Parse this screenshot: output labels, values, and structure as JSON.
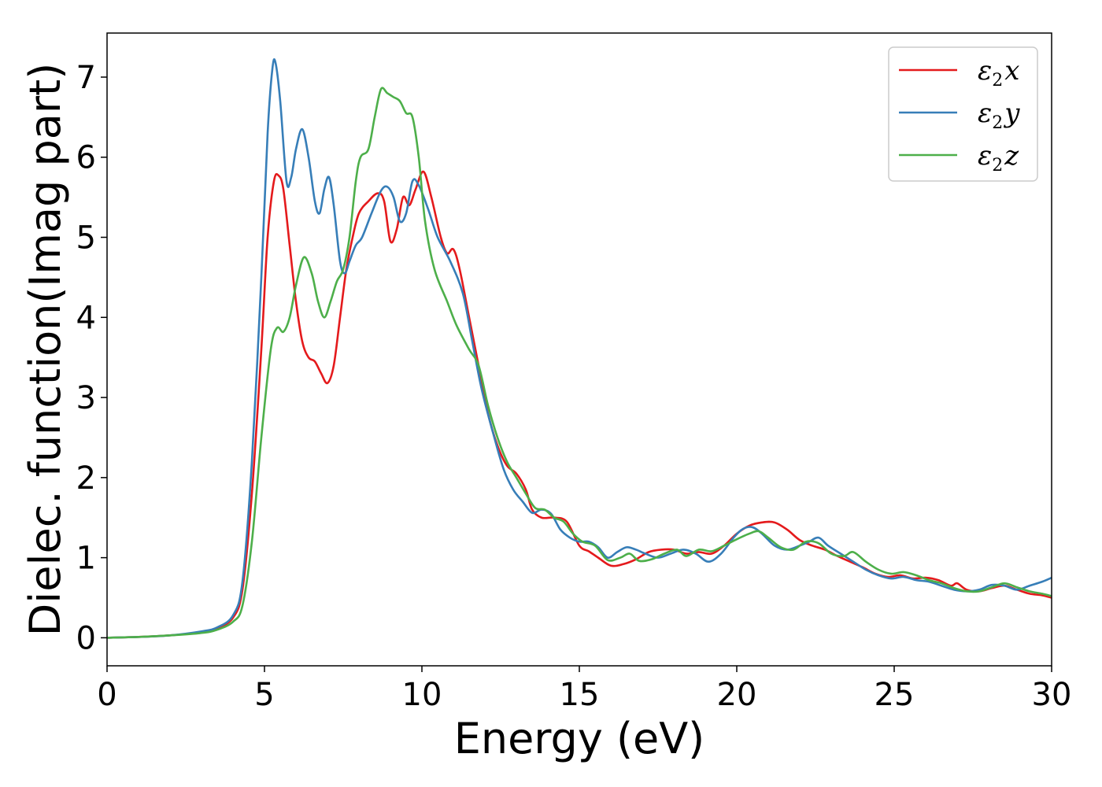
{
  "chart_data": {
    "type": "line",
    "title": "",
    "xlabel": "Energy (eV)",
    "ylabel": "Dielec. function(Imag part)",
    "xlim": [
      0,
      30
    ],
    "ylim": [
      -0.35,
      7.55
    ],
    "xticks": [
      0,
      5,
      10,
      15,
      20,
      25,
      30
    ],
    "yticks": [
      0,
      1,
      2,
      3,
      4,
      5,
      6,
      7
    ],
    "grid": false,
    "legend_position": "top-right",
    "series": [
      {
        "name": "ε₂x",
        "legend_base": "ε",
        "legend_sub": "2",
        "legend_var": "x",
        "color": "#e41a1c",
        "points": [
          [
            0,
            0
          ],
          [
            1,
            0.01
          ],
          [
            2,
            0.03
          ],
          [
            3,
            0.07
          ],
          [
            3.5,
            0.12
          ],
          [
            4,
            0.25
          ],
          [
            4.3,
            0.6
          ],
          [
            4.6,
            1.8
          ],
          [
            4.9,
            3.6
          ],
          [
            5.1,
            5.0
          ],
          [
            5.3,
            5.7
          ],
          [
            5.45,
            5.77
          ],
          [
            5.6,
            5.6
          ],
          [
            5.8,
            4.9
          ],
          [
            6.0,
            4.2
          ],
          [
            6.2,
            3.7
          ],
          [
            6.4,
            3.5
          ],
          [
            6.6,
            3.45
          ],
          [
            6.8,
            3.3
          ],
          [
            7.0,
            3.18
          ],
          [
            7.2,
            3.4
          ],
          [
            7.4,
            4.0
          ],
          [
            7.6,
            4.6
          ],
          [
            7.8,
            5.0
          ],
          [
            8.0,
            5.3
          ],
          [
            8.3,
            5.45
          ],
          [
            8.6,
            5.55
          ],
          [
            8.8,
            5.45
          ],
          [
            9.0,
            4.95
          ],
          [
            9.2,
            5.1
          ],
          [
            9.4,
            5.5
          ],
          [
            9.6,
            5.4
          ],
          [
            9.8,
            5.6
          ],
          [
            10.05,
            5.82
          ],
          [
            10.3,
            5.5
          ],
          [
            10.6,
            5.0
          ],
          [
            10.8,
            4.8
          ],
          [
            11.0,
            4.85
          ],
          [
            11.2,
            4.6
          ],
          [
            11.5,
            4.0
          ],
          [
            11.8,
            3.4
          ],
          [
            12.1,
            2.8
          ],
          [
            12.4,
            2.4
          ],
          [
            12.7,
            2.15
          ],
          [
            13.0,
            2.05
          ],
          [
            13.3,
            1.85
          ],
          [
            13.5,
            1.6
          ],
          [
            13.8,
            1.5
          ],
          [
            14.2,
            1.5
          ],
          [
            14.6,
            1.45
          ],
          [
            15.0,
            1.15
          ],
          [
            15.3,
            1.08
          ],
          [
            15.6,
            1.0
          ],
          [
            16.0,
            0.9
          ],
          [
            16.4,
            0.92
          ],
          [
            16.8,
            0.98
          ],
          [
            17.2,
            1.07
          ],
          [
            17.6,
            1.1
          ],
          [
            18.0,
            1.1
          ],
          [
            18.4,
            1.05
          ],
          [
            18.8,
            1.07
          ],
          [
            19.2,
            1.05
          ],
          [
            19.6,
            1.15
          ],
          [
            20.0,
            1.3
          ],
          [
            20.4,
            1.4
          ],
          [
            20.8,
            1.44
          ],
          [
            21.2,
            1.44
          ],
          [
            21.6,
            1.35
          ],
          [
            22.0,
            1.22
          ],
          [
            22.4,
            1.15
          ],
          [
            22.8,
            1.1
          ],
          [
            23.2,
            1.02
          ],
          [
            23.6,
            0.95
          ],
          [
            24.0,
            0.88
          ],
          [
            24.4,
            0.8
          ],
          [
            24.8,
            0.76
          ],
          [
            25.2,
            0.78
          ],
          [
            25.6,
            0.74
          ],
          [
            26.0,
            0.75
          ],
          [
            26.4,
            0.72
          ],
          [
            26.8,
            0.65
          ],
          [
            27.0,
            0.68
          ],
          [
            27.3,
            0.6
          ],
          [
            27.7,
            0.58
          ],
          [
            28.1,
            0.62
          ],
          [
            28.5,
            0.65
          ],
          [
            28.9,
            0.6
          ],
          [
            29.3,
            0.55
          ],
          [
            29.7,
            0.53
          ],
          [
            30.0,
            0.5
          ]
        ]
      },
      {
        "name": "ε₂y",
        "legend_base": "ε",
        "legend_sub": "2",
        "legend_var": "y",
        "color": "#377eb8",
        "points": [
          [
            0,
            0
          ],
          [
            1,
            0.01
          ],
          [
            2,
            0.03
          ],
          [
            3,
            0.08
          ],
          [
            3.5,
            0.13
          ],
          [
            4,
            0.28
          ],
          [
            4.3,
            0.7
          ],
          [
            4.6,
            2.2
          ],
          [
            4.9,
            4.5
          ],
          [
            5.1,
            6.3
          ],
          [
            5.25,
            7.1
          ],
          [
            5.35,
            7.18
          ],
          [
            5.5,
            6.7
          ],
          [
            5.7,
            5.7
          ],
          [
            5.85,
            5.75
          ],
          [
            6.0,
            6.1
          ],
          [
            6.2,
            6.35
          ],
          [
            6.4,
            6.0
          ],
          [
            6.6,
            5.45
          ],
          [
            6.75,
            5.3
          ],
          [
            6.9,
            5.6
          ],
          [
            7.05,
            5.75
          ],
          [
            7.2,
            5.4
          ],
          [
            7.4,
            4.7
          ],
          [
            7.55,
            4.55
          ],
          [
            7.7,
            4.7
          ],
          [
            7.9,
            4.9
          ],
          [
            8.1,
            5.0
          ],
          [
            8.4,
            5.3
          ],
          [
            8.7,
            5.58
          ],
          [
            8.9,
            5.63
          ],
          [
            9.1,
            5.5
          ],
          [
            9.3,
            5.2
          ],
          [
            9.5,
            5.3
          ],
          [
            9.7,
            5.7
          ],
          [
            9.9,
            5.65
          ],
          [
            10.2,
            5.35
          ],
          [
            10.5,
            5.0
          ],
          [
            10.9,
            4.7
          ],
          [
            11.3,
            4.3
          ],
          [
            11.6,
            3.7
          ],
          [
            11.9,
            3.1
          ],
          [
            12.3,
            2.5
          ],
          [
            12.6,
            2.1
          ],
          [
            12.9,
            1.85
          ],
          [
            13.2,
            1.7
          ],
          [
            13.5,
            1.56
          ],
          [
            13.8,
            1.6
          ],
          [
            14.1,
            1.55
          ],
          [
            14.4,
            1.35
          ],
          [
            14.7,
            1.25
          ],
          [
            15.0,
            1.2
          ],
          [
            15.3,
            1.2
          ],
          [
            15.6,
            1.13
          ],
          [
            15.9,
            1.0
          ],
          [
            16.2,
            1.07
          ],
          [
            16.5,
            1.13
          ],
          [
            16.8,
            1.1
          ],
          [
            17.1,
            1.05
          ],
          [
            17.5,
            1.0
          ],
          [
            17.9,
            1.05
          ],
          [
            18.3,
            1.1
          ],
          [
            18.7,
            1.05
          ],
          [
            19.1,
            0.95
          ],
          [
            19.5,
            1.05
          ],
          [
            19.9,
            1.25
          ],
          [
            20.2,
            1.36
          ],
          [
            20.5,
            1.38
          ],
          [
            20.8,
            1.3
          ],
          [
            21.2,
            1.15
          ],
          [
            21.6,
            1.1
          ],
          [
            22.0,
            1.15
          ],
          [
            22.3,
            1.2
          ],
          [
            22.6,
            1.25
          ],
          [
            22.9,
            1.15
          ],
          [
            23.3,
            1.05
          ],
          [
            23.7,
            0.95
          ],
          [
            24.1,
            0.85
          ],
          [
            24.5,
            0.78
          ],
          [
            24.9,
            0.74
          ],
          [
            25.3,
            0.76
          ],
          [
            25.7,
            0.72
          ],
          [
            26.1,
            0.7
          ],
          [
            26.5,
            0.65
          ],
          [
            26.9,
            0.6
          ],
          [
            27.3,
            0.58
          ],
          [
            27.7,
            0.6
          ],
          [
            28.1,
            0.66
          ],
          [
            28.5,
            0.65
          ],
          [
            28.9,
            0.6
          ],
          [
            29.3,
            0.65
          ],
          [
            29.7,
            0.7
          ],
          [
            30.0,
            0.75
          ]
        ]
      },
      {
        "name": "ε₂z",
        "legend_base": "ε",
        "legend_sub": "2",
        "legend_var": "z",
        "color": "#4daf4a",
        "points": [
          [
            0,
            0
          ],
          [
            1,
            0.01
          ],
          [
            2,
            0.03
          ],
          [
            3,
            0.06
          ],
          [
            3.5,
            0.1
          ],
          [
            4,
            0.2
          ],
          [
            4.3,
            0.4
          ],
          [
            4.6,
            1.2
          ],
          [
            4.9,
            2.5
          ],
          [
            5.2,
            3.6
          ],
          [
            5.4,
            3.87
          ],
          [
            5.6,
            3.82
          ],
          [
            5.8,
            4.0
          ],
          [
            6.0,
            4.4
          ],
          [
            6.25,
            4.75
          ],
          [
            6.5,
            4.55
          ],
          [
            6.7,
            4.2
          ],
          [
            6.9,
            4.0
          ],
          [
            7.1,
            4.2
          ],
          [
            7.3,
            4.45
          ],
          [
            7.5,
            4.6
          ],
          [
            7.7,
            5.0
          ],
          [
            7.9,
            5.7
          ],
          [
            8.05,
            6.0
          ],
          [
            8.3,
            6.1
          ],
          [
            8.5,
            6.5
          ],
          [
            8.7,
            6.85
          ],
          [
            8.9,
            6.8
          ],
          [
            9.1,
            6.75
          ],
          [
            9.3,
            6.7
          ],
          [
            9.5,
            6.55
          ],
          [
            9.7,
            6.5
          ],
          [
            9.9,
            6.0
          ],
          [
            10.1,
            5.2
          ],
          [
            10.4,
            4.6
          ],
          [
            10.8,
            4.2
          ],
          [
            11.1,
            3.9
          ],
          [
            11.5,
            3.6
          ],
          [
            11.8,
            3.4
          ],
          [
            12.1,
            2.9
          ],
          [
            12.4,
            2.5
          ],
          [
            12.7,
            2.2
          ],
          [
            13.0,
            2.0
          ],
          [
            13.3,
            1.8
          ],
          [
            13.6,
            1.62
          ],
          [
            13.9,
            1.6
          ],
          [
            14.2,
            1.5
          ],
          [
            14.5,
            1.45
          ],
          [
            14.8,
            1.3
          ],
          [
            15.1,
            1.2
          ],
          [
            15.5,
            1.15
          ],
          [
            15.9,
            0.97
          ],
          [
            16.3,
            1.0
          ],
          [
            16.6,
            1.05
          ],
          [
            16.9,
            0.96
          ],
          [
            17.3,
            0.98
          ],
          [
            17.7,
            1.05
          ],
          [
            18.1,
            1.1
          ],
          [
            18.4,
            1.02
          ],
          [
            18.8,
            1.1
          ],
          [
            19.2,
            1.08
          ],
          [
            19.6,
            1.15
          ],
          [
            20.0,
            1.23
          ],
          [
            20.4,
            1.3
          ],
          [
            20.7,
            1.33
          ],
          [
            21.0,
            1.25
          ],
          [
            21.4,
            1.13
          ],
          [
            21.8,
            1.1
          ],
          [
            22.2,
            1.2
          ],
          [
            22.6,
            1.18
          ],
          [
            23.0,
            1.05
          ],
          [
            23.4,
            1.02
          ],
          [
            23.7,
            1.07
          ],
          [
            24.1,
            0.95
          ],
          [
            24.5,
            0.85
          ],
          [
            24.9,
            0.8
          ],
          [
            25.3,
            0.82
          ],
          [
            25.7,
            0.78
          ],
          [
            26.1,
            0.72
          ],
          [
            26.5,
            0.68
          ],
          [
            26.9,
            0.62
          ],
          [
            27.3,
            0.58
          ],
          [
            27.7,
            0.58
          ],
          [
            28.1,
            0.63
          ],
          [
            28.5,
            0.68
          ],
          [
            28.9,
            0.63
          ],
          [
            29.3,
            0.58
          ],
          [
            29.7,
            0.55
          ],
          [
            30.0,
            0.52
          ]
        ]
      }
    ]
  }
}
